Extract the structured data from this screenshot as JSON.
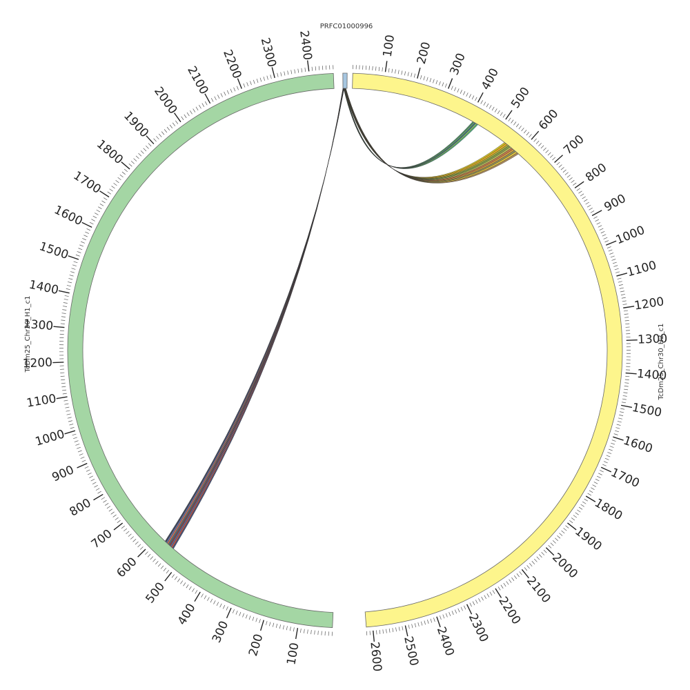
{
  "diagram": {
    "type": "circos",
    "segments": [
      {
        "id": "prfc",
        "name": "PRFC01000996",
        "length": 20,
        "color": "#a6c6e0",
        "show_ticks": false
      },
      {
        "id": "h2",
        "name": "TcDm25_Chr30_H2_c1",
        "length": 2620,
        "color": "#fdf58c",
        "tick_labels": [
          100,
          200,
          300,
          400,
          500,
          600,
          700,
          800,
          900,
          1000,
          1100,
          1200,
          1300,
          1400,
          1500,
          1600,
          1700,
          1800,
          1900,
          2000,
          2100,
          2200,
          2300,
          2400,
          2500,
          2600
        ]
      },
      {
        "id": "h1",
        "name": "TcDm25_Chr30_H1_c1",
        "length": 2470,
        "color": "#a4d6a4",
        "tick_labels": [
          100,
          200,
          300,
          400,
          500,
          600,
          700,
          800,
          900,
          1000,
          1100,
          1200,
          1300,
          1400,
          1500,
          1600,
          1700,
          1800,
          1900,
          2000,
          2100,
          2200,
          2300,
          2400
        ]
      }
    ],
    "links": [
      {
        "from": {
          "segment": "prfc",
          "start": 3,
          "end": 8
        },
        "to": {
          "segment": "h2",
          "start": 415,
          "end": 435
        },
        "colors": [
          "#2e7d4f",
          "#5aa05a",
          "#1e5a7a",
          "#8cc84b",
          "#33a070"
        ]
      },
      {
        "from": {
          "segment": "prfc",
          "start": 5,
          "end": 14
        },
        "to": {
          "segment": "h2",
          "start": 540,
          "end": 600
        },
        "colors": [
          "#c8b400",
          "#e8a000",
          "#9aa020",
          "#6f8f30",
          "#b0b040",
          "#c06030",
          "#d09020",
          "#808040",
          "#e0c020",
          "#a07840"
        ]
      },
      {
        "from": {
          "segment": "prfc",
          "start": 0,
          "end": 6
        },
        "to": {
          "segment": "h1",
          "start": 540,
          "end": 575
        },
        "colors": [
          "#2a3a6a",
          "#c04030",
          "#4a5a90",
          "#7a2a2a",
          "#3a6070",
          "#d06040",
          "#5060a0",
          "#202840"
        ]
      }
    ]
  }
}
